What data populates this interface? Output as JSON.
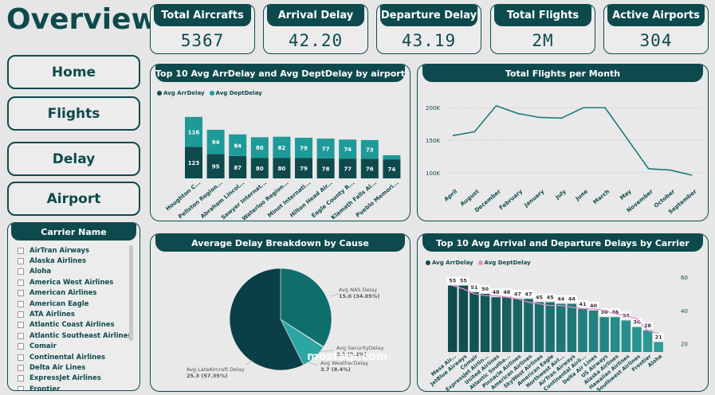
{
  "page": {
    "title": "Overview"
  },
  "nav": {
    "home": "Home",
    "flights": "Flights",
    "delay": "Delay",
    "airport": "Airport"
  },
  "kpis": [
    {
      "label": "Total Aircrafts",
      "value": "5367"
    },
    {
      "label": "Arrival Delay",
      "value": "42.20"
    },
    {
      "label": "Departure Delay",
      "value": "43.19"
    },
    {
      "label": "Total Flights",
      "value": "2M"
    },
    {
      "label": "Active Airports",
      "value": "304"
    }
  ],
  "carrier": {
    "title": "Carrier Name",
    "items": [
      "AirTran Airways",
      "Alaska Airlines",
      "Aloha",
      "America West Airlines",
      "American Airlines",
      "American Eagle",
      "ATA Airlines",
      "Atlantic Coast Airlines",
      "Atlantic Southeast Airlines",
      "Comair",
      "Continental Airlines",
      "Delta Air Lines",
      "ExpressJet Airlines",
      "Frontier"
    ]
  },
  "panels": {
    "airport": "Top 10 Avg ArrDelay and Avg DeptDelay by airport",
    "month": "Total Flights per Month",
    "cause": "Average Delay Breakdown by Cause",
    "carrier": "Top 10 Avg Arrival and Departure Delays by Carrier"
  },
  "watermark": "mostaql.com",
  "colors": {
    "dark": "#0e4a4d",
    "teal": "#1e9a99",
    "pink": "#e48bcf",
    "grad_start": "#0e4a4d",
    "grad_end": "#2c9c97"
  },
  "chart_data": [
    {
      "type": "bar",
      "stacked": true,
      "title": "Top 10 Avg ArrDelay and Avg DeptDelay by airport",
      "categories": [
        "Houghton C...",
        "Pellston Region...",
        "Abraham Lincol...",
        "Sawyer Internat...",
        "Waterloo Region...",
        "Minot Internati...",
        "Hilton Head Air...",
        "Eagle County R...",
        "Klamath Falls Al...",
        "Pueblo Memori..."
      ],
      "series": [
        {
          "name": "Avg ArrDelay",
          "values": [
            123,
            95,
            87,
            80,
            80,
            79,
            78,
            77,
            76,
            74
          ]
        },
        {
          "name": "Avg DeptDelay",
          "values": [
            116,
            94,
            84,
            80,
            82,
            79,
            77,
            74,
            73,
            16
          ]
        }
      ],
      "label_values": [
        {
          "name": "Avg ArrDelay",
          "values": [
            123,
            95,
            87,
            80,
            80,
            79,
            78,
            77,
            76,
            74
          ]
        },
        {
          "name": "Avg DeptDelay",
          "values": [
            116,
            94,
            84,
            80,
            82,
            79,
            77,
            74,
            73,
            null
          ]
        }
      ],
      "legend": "top-left"
    },
    {
      "type": "line",
      "title": "Total Flights per Month",
      "categories": [
        "April",
        "August",
        "December",
        "February",
        "January",
        "July",
        "June",
        "March",
        "May",
        "November",
        "October",
        "September"
      ],
      "values": [
        157000,
        163000,
        203000,
        191000,
        185000,
        184000,
        200000,
        200000,
        153000,
        106000,
        104000,
        96000
      ],
      "yticks": [
        "100K",
        "150K",
        "200K"
      ],
      "ytick_values": [
        100000,
        150000,
        200000
      ],
      "ylim": [
        90000,
        215000
      ]
    },
    {
      "type": "pie",
      "title": "Average Delay Breakdown by Cause",
      "slices": [
        {
          "label": "Avg NAS Delay",
          "value": 15.0,
          "pct": "34.05%",
          "color": "#0e6e6c"
        },
        {
          "label": "Avg SecurityDelay",
          "value": 0.1,
          "pct": "0.2%",
          "color": "#88c8c5"
        },
        {
          "label": "Avg WeatherDelay",
          "value": 3.7,
          "pct": "8.4%",
          "color": "#2ba6a2"
        },
        {
          "label": "Avg LateAircraft Delay",
          "value": 25.3,
          "pct": "57.35%",
          "color": "#0b3f47"
        }
      ],
      "slice_labels": [
        "Avg NAS Delay\n15.0 (34.05%)",
        "Avg SecurityDelay\n0.1 (0.2%)",
        "Avg WeatherDelay\n3.7 (8.4%)",
        "Avg LateAircraft Delay\n25.3 (57.35%)"
      ]
    },
    {
      "type": "bar",
      "title": "Top 10 Avg Arrival and Departure Delays by Carrier",
      "categories": [
        "Mesa Air...",
        "JetBlue Airways",
        "Comair",
        "ExpressJet Airlin...",
        "United Airlines",
        "Atlantic Southe...",
        "Pinnacle Airlines",
        "American Airlines",
        "SkyWest Airlines",
        "American Eagle",
        "Northwest Airl...",
        "AirTran Airways",
        "Continental Airli...",
        "Delta Air Lines",
        "US Airways",
        "Alaska Airlines",
        "Hawaiian Airlines",
        "Southwest Airlines",
        "Frontier",
        "Aloha"
      ],
      "series": [
        {
          "name": "Avg ArrDelay",
          "values": [
            55,
            55,
            51,
            50,
            48,
            48,
            47,
            47,
            45,
            45,
            44,
            44,
            41,
            40,
            36,
            36,
            34,
            30,
            28,
            21
          ]
        },
        {
          "name": "Avg DeptDelay",
          "values": [
            55,
            53,
            50,
            49,
            49,
            48,
            47,
            45,
            44,
            43,
            43,
            42,
            41,
            41,
            40,
            38,
            37,
            35,
            28,
            26
          ]
        }
      ],
      "yticks": [
        "20",
        "40",
        "60"
      ],
      "ytick_values": [
        20,
        40,
        60
      ],
      "ylim": [
        15,
        62
      ],
      "legend": "top-left"
    }
  ]
}
